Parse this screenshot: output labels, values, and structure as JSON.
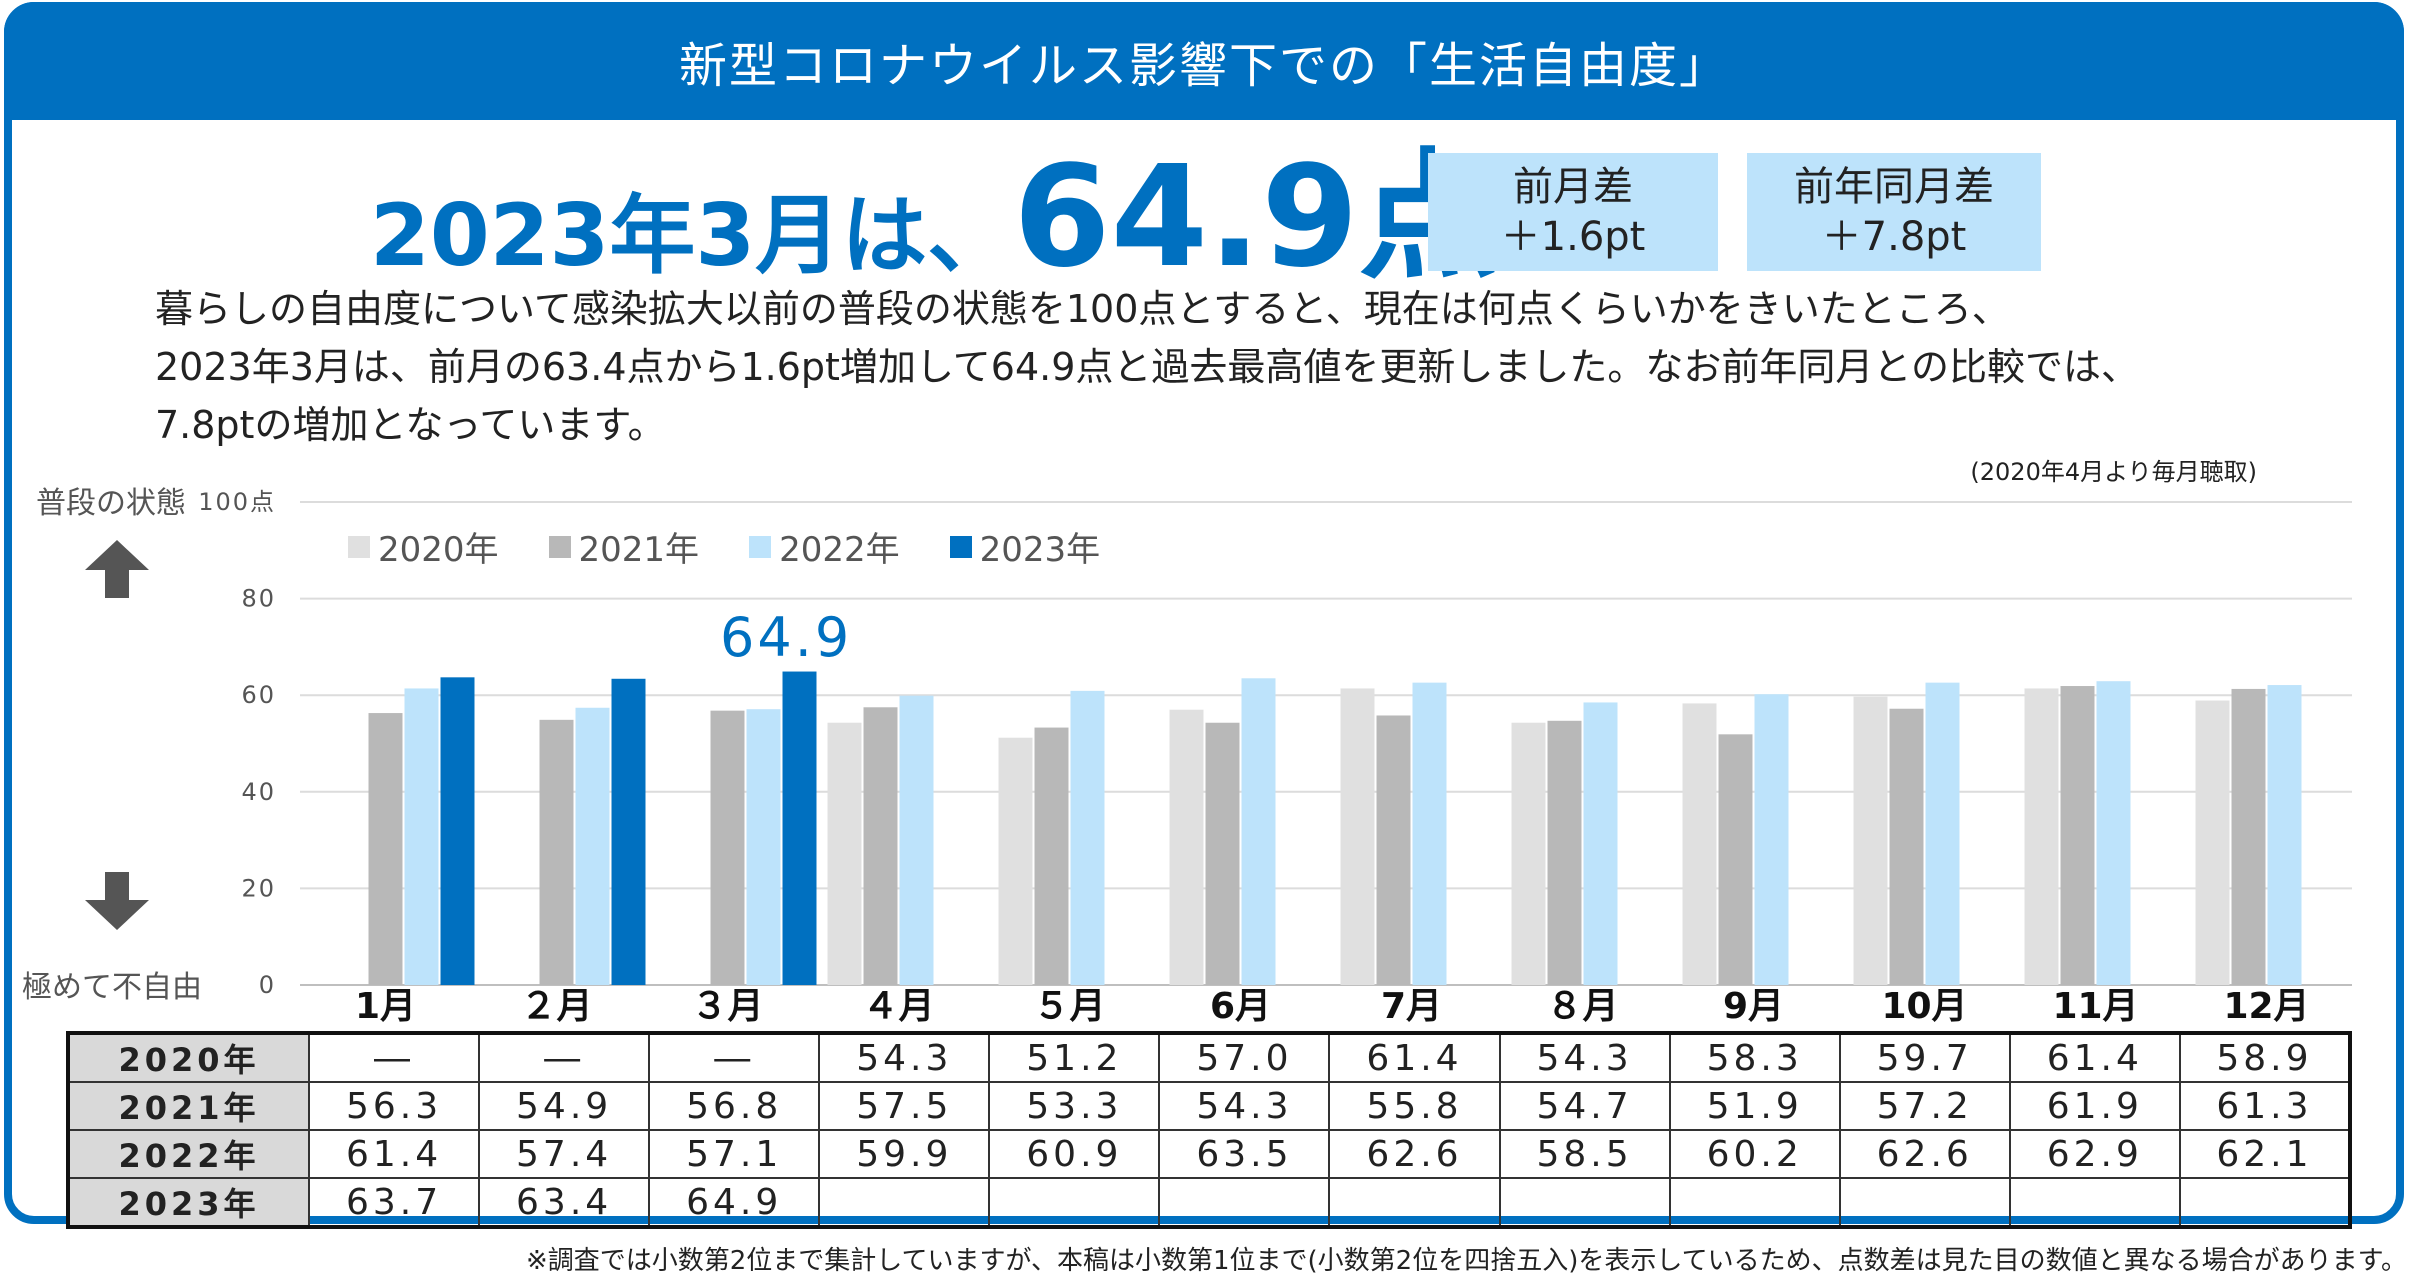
{
  "title": "新型コロナウイルス影響下での「生活自由度」",
  "headline": {
    "lead": "2023年3月は、",
    "value": "64.9点"
  },
  "diff_boxes": [
    {
      "label": "前月差",
      "value": "＋1.6pt"
    },
    {
      "label": "前年同月差",
      "value": "＋7.8pt"
    }
  ],
  "description": [
    "暮らしの自由度について感染拡大以前の普段の状態を100点とすると、現在は何点くらいかをきいたところ、",
    "2023年3月は、前月の63.4点から1.6pt増加して64.9点と過去最高値を更新しました。なお前年同月との比較では、",
    "7.8ptの増加となっています。"
  ],
  "note_top": "(2020年4月より毎月聴取)",
  "side_labels": {
    "top": "普段の状態",
    "bottom": "極めて不自由"
  },
  "icons": {
    "up": "up-arrow-icon",
    "down": "down-arrow-icon"
  },
  "callout": "64.9",
  "footnote": "※調査では小数第2位まで集計していますが、本稿は小数第1位まで(小数第2位を四捨五入)を表示しているため、点数差は見た目の数値と異なる場合があります。",
  "colors": {
    "brand": "#0070c0",
    "s2020": "#e0e0e0",
    "s2021": "#b8b8b8",
    "s2022": "#bde3fb",
    "s2023": "#0070c0",
    "box": "#bde3fb"
  },
  "chart_data": {
    "type": "bar",
    "categories": [
      "1月",
      "２月",
      "３月",
      "４月",
      "５月",
      "6月",
      "7月",
      "８月",
      "9月",
      "10月",
      "11月",
      "12月"
    ],
    "yticks": [
      "100点",
      "80",
      "60",
      "40",
      "20",
      "0"
    ],
    "ylim": [
      0,
      100
    ],
    "legend_position": "top-left",
    "grid": true,
    "series": [
      {
        "name": "2020年",
        "values": [
          null,
          null,
          null,
          54.3,
          51.2,
          57.0,
          61.4,
          54.3,
          58.3,
          59.7,
          61.4,
          58.9
        ]
      },
      {
        "name": "2021年",
        "values": [
          56.3,
          54.9,
          56.8,
          57.5,
          53.3,
          54.3,
          55.8,
          54.7,
          51.9,
          57.2,
          61.9,
          61.3
        ]
      },
      {
        "name": "2022年",
        "values": [
          61.4,
          57.4,
          57.1,
          59.9,
          60.9,
          63.5,
          62.6,
          58.5,
          60.2,
          62.6,
          62.9,
          62.1
        ]
      },
      {
        "name": "2023年",
        "values": [
          63.7,
          63.4,
          64.9,
          null,
          null,
          null,
          null,
          null,
          null,
          null,
          null,
          null
        ]
      }
    ]
  },
  "table": {
    "rows": [
      {
        "label": "2020年",
        "cells": [
          "―",
          "―",
          "―",
          "54.3",
          "51.2",
          "57.0",
          "61.4",
          "54.3",
          "58.3",
          "59.7",
          "61.4",
          "58.9"
        ]
      },
      {
        "label": "2021年",
        "cells": [
          "56.3",
          "54.9",
          "56.8",
          "57.5",
          "53.3",
          "54.3",
          "55.8",
          "54.7",
          "51.9",
          "57.2",
          "61.9",
          "61.3"
        ]
      },
      {
        "label": "2022年",
        "cells": [
          "61.4",
          "57.4",
          "57.1",
          "59.9",
          "60.9",
          "63.5",
          "62.6",
          "58.5",
          "60.2",
          "62.6",
          "62.9",
          "62.1"
        ]
      },
      {
        "label": "2023年",
        "cells": [
          "63.7",
          "63.4",
          "64.9",
          "",
          "",
          "",
          "",
          "",
          "",
          "",
          "",
          ""
        ]
      }
    ]
  }
}
